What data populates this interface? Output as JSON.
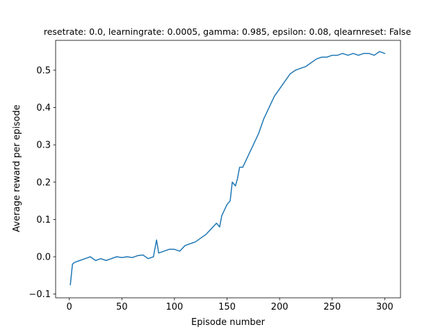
{
  "chart_data": {
    "type": "line",
    "title": "resetrate: 0.0, learningrate: 0.0005, gamma: 0.985, epsilon: 0.08, qlearnreset: False",
    "xlabel": "Episode number",
    "ylabel": "Average reward per episode",
    "xlim": [
      -13,
      315
    ],
    "ylim": [
      -0.11,
      0.58
    ],
    "xticks": [
      0,
      50,
      100,
      150,
      200,
      250,
      300
    ],
    "xtick_labels": [
      "0",
      "50",
      "100",
      "150",
      "200",
      "250",
      "300"
    ],
    "yticks": [
      -0.1,
      0.0,
      0.1,
      0.2,
      0.3,
      0.4,
      0.5
    ],
    "ytick_labels": [
      "−0.1",
      "0.0",
      "0.1",
      "0.2",
      "0.3",
      "0.4",
      "0.5"
    ],
    "grid": false,
    "series": [
      {
        "color": "#1f77b4",
        "x": [
          1,
          3,
          5,
          10,
          15,
          20,
          25,
          30,
          35,
          40,
          45,
          50,
          55,
          60,
          65,
          70,
          75,
          80,
          83,
          85,
          90,
          95,
          100,
          105,
          110,
          115,
          120,
          125,
          130,
          135,
          140,
          143,
          145,
          150,
          153,
          155,
          158,
          160,
          162,
          165,
          170,
          175,
          180,
          185,
          190,
          195,
          200,
          205,
          210,
          215,
          220,
          225,
          230,
          235,
          240,
          245,
          250,
          255,
          260,
          265,
          270,
          275,
          280,
          285,
          290,
          295,
          300
        ],
        "y": [
          -0.075,
          -0.02,
          -0.015,
          -0.01,
          -0.005,
          0.0,
          -0.01,
          -0.005,
          -0.01,
          -0.005,
          0.0,
          -0.002,
          0.0,
          -0.002,
          0.003,
          0.005,
          -0.005,
          0.0,
          0.045,
          0.01,
          0.015,
          0.02,
          0.02,
          0.015,
          0.03,
          0.035,
          0.04,
          0.05,
          0.06,
          0.075,
          0.09,
          0.08,
          0.11,
          0.14,
          0.15,
          0.2,
          0.19,
          0.21,
          0.24,
          0.24,
          0.27,
          0.3,
          0.33,
          0.37,
          0.4,
          0.43,
          0.45,
          0.47,
          0.49,
          0.5,
          0.505,
          0.51,
          0.52,
          0.53,
          0.535,
          0.535,
          0.54,
          0.54,
          0.545,
          0.54,
          0.545,
          0.54,
          0.545,
          0.545,
          0.54,
          0.55,
          0.545
        ]
      }
    ]
  }
}
